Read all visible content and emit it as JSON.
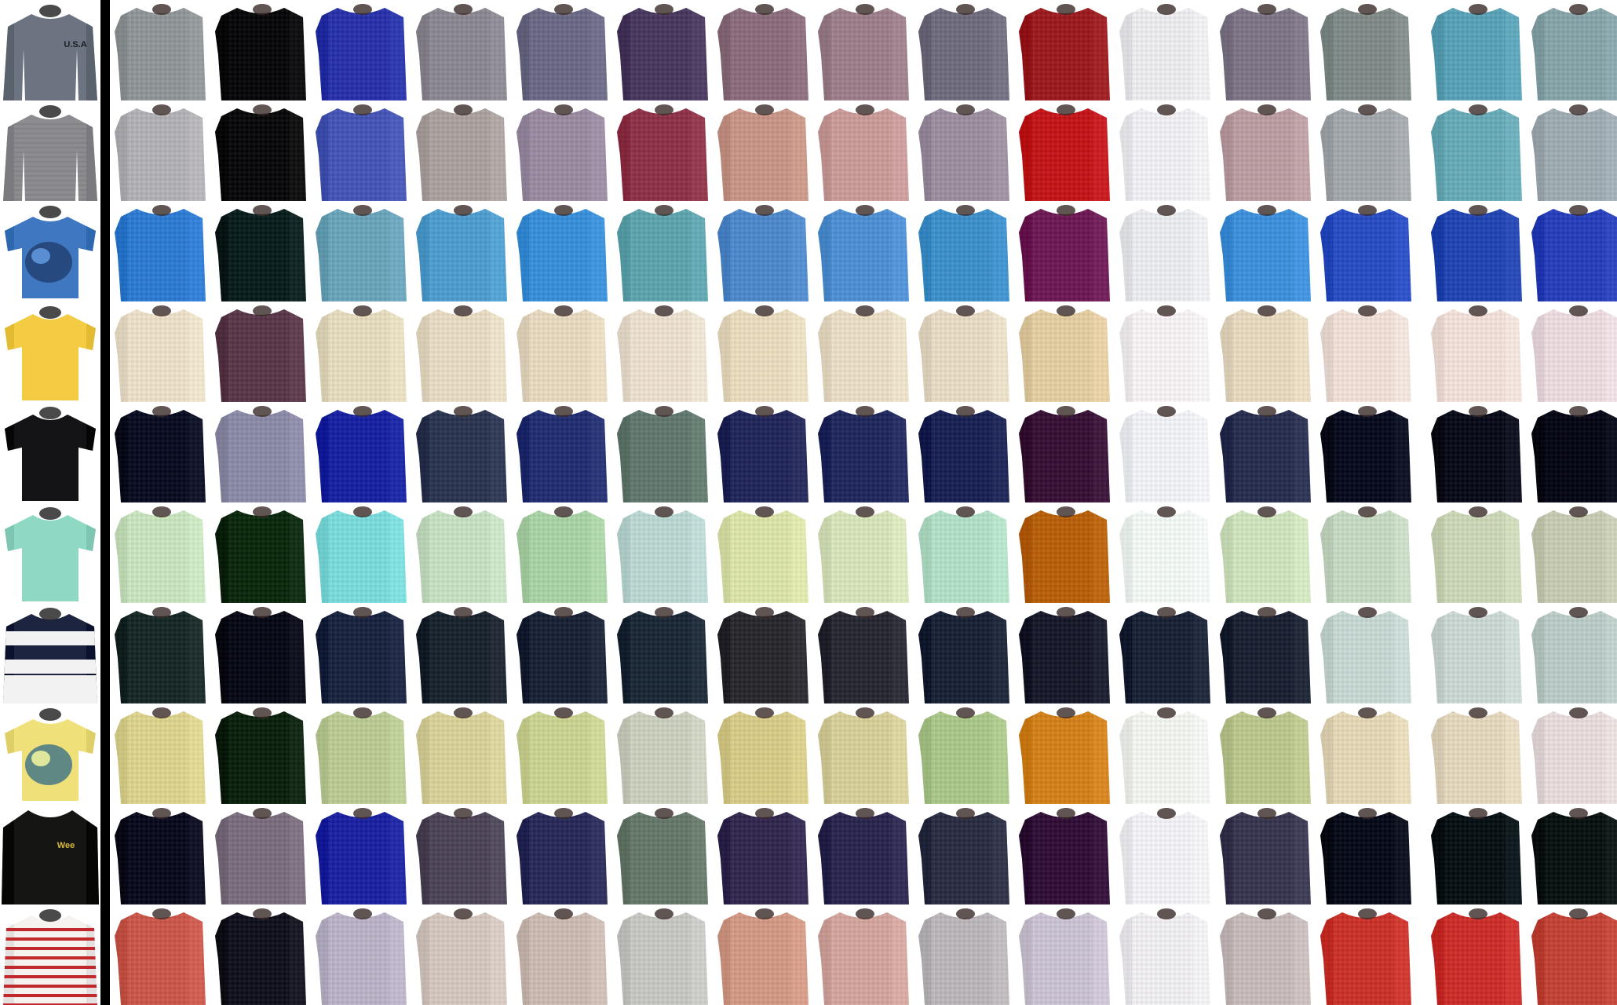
{
  "grid": {
    "rows": [
      {
        "label": "row-1",
        "input_color": "#6b7480",
        "input_style": "longsleeve",
        "input_text": "U.S.A",
        "input_accent": "#1c1e24",
        "outputs": [
          "#8f9496",
          "#0b0b0d",
          "#2a34a8",
          "#8b8790",
          "#6b6a85",
          "#4a3a5f",
          "#8a6d7c",
          "#9a7f8b",
          "#6f6c7e",
          "#9a1d22",
          "#e8e8ec",
          "#7e7686",
          "#7f8a88",
          "#5aa0b4",
          "#86a3a8"
        ]
      },
      {
        "label": "row-2",
        "input_color": "#8c8c90",
        "input_style": "knit",
        "input_text": "",
        "input_accent": "",
        "outputs": [
          "#b0afb3",
          "#0c0c0e",
          "#4656b2",
          "#a9a09e",
          "#998aa0",
          "#8e3448",
          "#c59486",
          "#c79a98",
          "#9a8d9e",
          "#c0181c",
          "#ececf0",
          "#b89ca0",
          "#a0a6aa",
          "#69a9b6",
          "#9eaab0"
        ]
      },
      {
        "label": "row-3",
        "input_color": "#3f78c0",
        "input_style": "tee-print",
        "input_text": "",
        "input_accent": "#1f3a6a",
        "outputs": [
          "#2f7bd0",
          "#0d2020",
          "#6aa3b8",
          "#4f9ccc",
          "#3a8ed6",
          "#5ea3ac",
          "#4f88c8",
          "#4f8ed0",
          "#3f8ec8",
          "#6d1c54",
          "#e6e8ec",
          "#3f8ed8",
          "#2a4ec0",
          "#2446b0",
          "#2a40b8"
        ]
      },
      {
        "label": "row-4",
        "input_color": "#f4cc44",
        "input_style": "tee",
        "input_text": "",
        "input_accent": "",
        "outputs": [
          "#e8dcc6",
          "#5a3a4a",
          "#e2d8bc",
          "#e4d8c0",
          "#e4d6be",
          "#e8dccc",
          "#e6d8bc",
          "#e6dac2",
          "#e4d8c2",
          "#e0caa0",
          "#f2eef0",
          "#e4d6be",
          "#ecdcd4",
          "#eedcd6",
          "#e8d8dc"
        ]
      },
      {
        "label": "row-5",
        "input_color": "#141416",
        "input_style": "tee",
        "input_text": "",
        "input_accent": "",
        "outputs": [
          "#0c1024",
          "#8a8aa6",
          "#1a24a0",
          "#2e3650",
          "#243070",
          "#62786e",
          "#24285a",
          "#232a5e",
          "#1c2454",
          "#3a1438",
          "#eceef2",
          "#2a3050",
          "#0a0e20",
          "#0c0e1c",
          "#080a18"
        ]
      },
      {
        "label": "row-6",
        "input_color": "#8fd8c4",
        "input_style": "tee",
        "input_text": "",
        "input_accent": "",
        "outputs": [
          "#c6e0bc",
          "#0e2a10",
          "#7ad8d8",
          "#c4dcc0",
          "#a8d0a4",
          "#b8d4d0",
          "#d8e0a8",
          "#d4e0b8",
          "#b0dcc4",
          "#b4600c",
          "#eef4f0",
          "#cce0bc",
          "#c4d6c0",
          "#c8d4b4",
          "#c4c8b0"
        ]
      },
      {
        "label": "row-7",
        "input_color": "#1c2440",
        "input_style": "stripes-wide",
        "input_text": "",
        "input_accent": "#f2f2f2",
        "outputs": [
          "#1a2a28",
          "#0a0c18",
          "#1c2640",
          "#1c2630",
          "#1c2438",
          "#1e2a38",
          "#2a2a30",
          "#2a2a34",
          "#1c2438",
          "#1a1c2c",
          "#1c2438",
          "#1c2434",
          "#c4d4d0",
          "#c8d4d0",
          "#b8c8c4"
        ]
      },
      {
        "label": "row-8",
        "input_color": "#f0e07a",
        "input_style": "tee-print",
        "input_text": "",
        "input_accent": "#2f6a88",
        "outputs": [
          "#d8d08c",
          "#0e2410",
          "#b8c894",
          "#d4ce98",
          "#c8d090",
          "#c8ccbc",
          "#d4c888",
          "#d4cc98",
          "#a8c488",
          "#d0801c",
          "#eef0ec",
          "#b8c48c",
          "#e0d4b4",
          "#e0d4bc",
          "#e4d8d8"
        ]
      },
      {
        "label": "row-9",
        "input_color": "#151613",
        "input_style": "hoodie",
        "input_text": "Wee",
        "input_accent": "#d8b640",
        "outputs": [
          "#0c0e20",
          "#7a6e7e",
          "#1e24a0",
          "#4e4658",
          "#2c2c5a",
          "#66786a",
          "#342a50",
          "#2c2850",
          "#2c3044",
          "#321238",
          "#eeeef2",
          "#3a3850",
          "#0a0e1c",
          "#0a1418",
          "#0c1414"
        ]
      },
      {
        "label": "row-10",
        "input_color": "#f6f2f0",
        "input_style": "stripes-thin",
        "input_text": "",
        "input_accent": "#c0282c",
        "outputs": [
          "#c8584c",
          "#141420",
          "#b8b0c4",
          "#d0c4bc",
          "#c8b8b0",
          "#c4c4c0",
          "#d09884",
          "#d0a49c",
          "#b8b4b8",
          "#c8c0d0",
          "#eceaee",
          "#c4b8b8",
          "#c8342c",
          "#c8302c",
          "#c04438"
        ]
      }
    ]
  }
}
